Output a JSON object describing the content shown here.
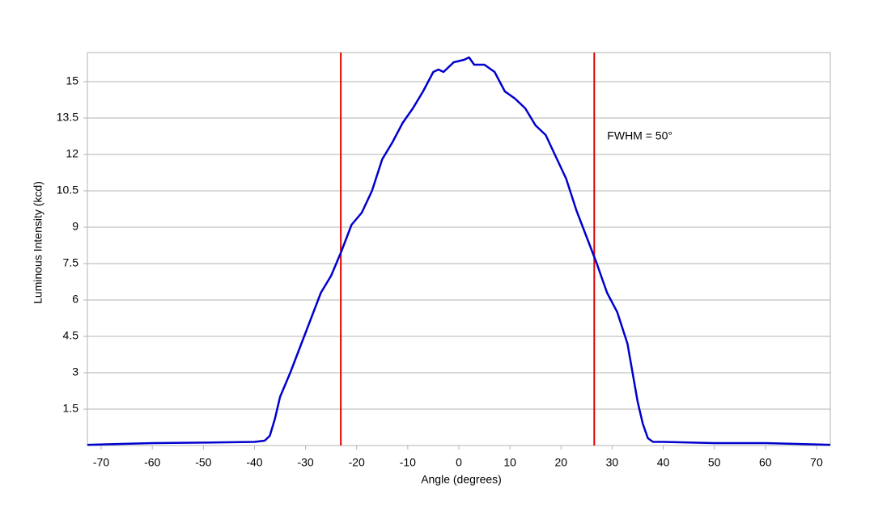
{
  "chart_data": {
    "type": "line",
    "x_label": "Angle (degrees)",
    "y_label": "Luminous Intensity (kcd)",
    "annotation": "FWHM = 50°",
    "vlines": {
      "values": [
        -23.1,
        26.5
      ],
      "color": "#e00000"
    },
    "grid": true,
    "xlim": [
      -72.7,
      72.7
    ],
    "xticks": [
      -70,
      -60,
      -50,
      -40,
      -30,
      -20,
      -10,
      0,
      10,
      20,
      30,
      40,
      50,
      60,
      70
    ],
    "ylim": [
      0,
      16.2
    ],
    "yticks": [
      1.5,
      3,
      4.5,
      6,
      7.5,
      9,
      10.5,
      12,
      13.5,
      15
    ],
    "x": [
      -72.7,
      -60,
      -50,
      -40,
      -38,
      -37,
      -36,
      -35,
      -33,
      -31,
      -29,
      -27,
      -25,
      -23,
      -21,
      -19,
      -17,
      -15,
      -13,
      -11,
      -9,
      -7,
      -5,
      -4,
      -3,
      -1,
      1,
      2,
      3,
      5,
      7,
      9,
      11,
      13,
      15,
      17,
      19,
      21,
      23,
      25,
      27,
      29,
      31,
      33,
      35,
      36,
      37,
      38,
      40,
      50,
      60,
      72.7
    ],
    "series": [
      {
        "color": "#0000cc",
        "values": [
          0.03,
          0.1,
          0.12,
          0.15,
          0.2,
          0.4,
          1.1,
          2.0,
          3.0,
          4.1,
          5.2,
          6.3,
          7.0,
          8.0,
          9.1,
          9.6,
          10.5,
          11.8,
          12.5,
          13.3,
          13.9,
          14.6,
          15.4,
          15.5,
          15.4,
          15.8,
          15.9,
          16.0,
          15.7,
          15.7,
          15.4,
          14.6,
          14.3,
          13.9,
          13.2,
          12.8,
          11.9,
          11.0,
          9.7,
          8.6,
          7.5,
          6.3,
          5.5,
          4.2,
          1.8,
          0.9,
          0.3,
          0.15,
          0.15,
          0.1,
          0.1,
          0.03
        ]
      }
    ]
  }
}
